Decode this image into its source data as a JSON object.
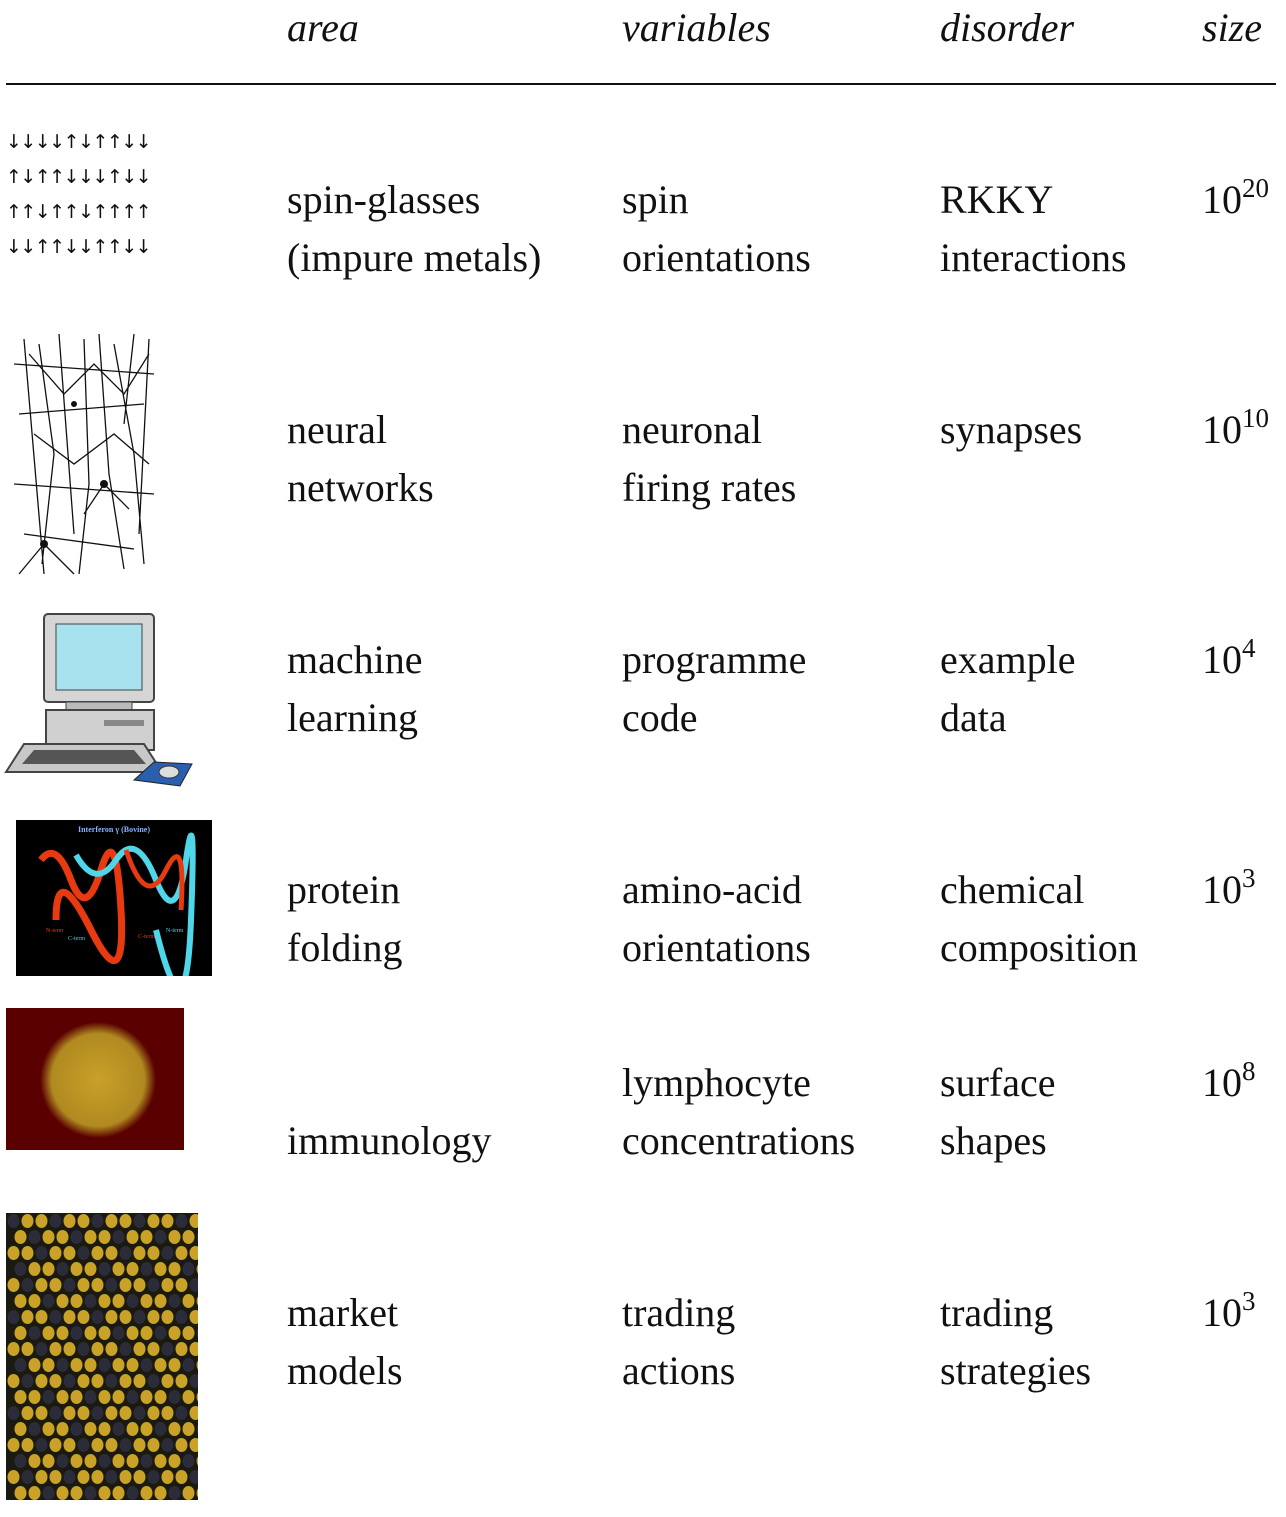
{
  "header": {
    "columns": [
      "area",
      "variables",
      "disorder",
      "size"
    ]
  },
  "rows": [
    {
      "icon": [
        "↓↓↓↓↑↓↑↑↓↓",
        "↑↓↑↑↓↓↓↑↓↓",
        "↑↑↓↑↑↓↑↑↑↑",
        "↓↓↑↑↓↓↑↑↓↓"
      ],
      "area": [
        "spin-glasses",
        "(impure metals)"
      ],
      "variables": [
        "spin",
        "orientations"
      ],
      "disorder": [
        "RKKY",
        "interactions"
      ],
      "size": {
        "base": "10",
        "exponent": "20"
      }
    },
    {
      "area": [
        "neural",
        "networks"
      ],
      "variables": [
        "neuronal",
        "firing rates"
      ],
      "disorder": [
        "synapses"
      ],
      "size": {
        "base": "10",
        "exponent": "10"
      }
    },
    {
      "area": [
        "machine",
        "learning"
      ],
      "variables": [
        "programme",
        "code"
      ],
      "disorder": [
        "example",
        "data"
      ],
      "size": {
        "base": "10",
        "exponent": "4"
      }
    },
    {
      "icon_title": "Interferon γ (Bovine)",
      "icon_labels": [
        "N-term",
        "C-term",
        "C-term",
        "N-term"
      ],
      "area": [
        "protein",
        "folding"
      ],
      "variables": [
        "amino-acid",
        "orientations"
      ],
      "disorder": [
        "chemical",
        "composition"
      ],
      "size": {
        "base": "10",
        "exponent": "3"
      }
    },
    {
      "area": [
        "immunology"
      ],
      "variables": [
        "lymphocyte",
        "concentrations"
      ],
      "disorder": [
        "surface",
        "shapes"
      ],
      "size": {
        "base": "10",
        "exponent": "8"
      }
    },
    {
      "area": [
        "market",
        "models"
      ],
      "variables": [
        "trading",
        "actions"
      ],
      "disorder": [
        "trading",
        "strategies"
      ],
      "size": {
        "base": "10",
        "exponent": "3"
      }
    }
  ]
}
